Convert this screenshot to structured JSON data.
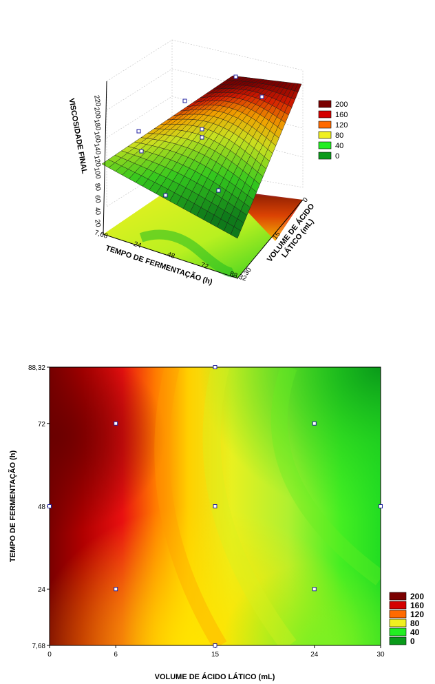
{
  "chart_data": [
    {
      "type": "surface3d",
      "title": "",
      "xlabel": "TEMPO DE FERMENTAÇÃO (h)",
      "ylabel": "VOLUME DE ÁCIDO LÁTICO (mL)",
      "zlabel": "VISCOSIDADE FINAL",
      "x_ticks": [
        "7,68",
        "24",
        "48",
        "72",
        "88,32"
      ],
      "y_ticks": [
        "0",
        "15",
        "30"
      ],
      "z_ticks": [
        "20",
        "40",
        "60",
        "80",
        "100",
        "120",
        "140",
        "160",
        "180",
        "200",
        "220"
      ],
      "legend": [
        "200",
        "160",
        "120",
        "80",
        "40",
        "0"
      ],
      "legend_colors": [
        "#7a0000",
        "#d40000",
        "#ff6a00",
        "#f0f020",
        "#22ee22",
        "#0a9a1a"
      ],
      "grid": true
    },
    {
      "type": "contour",
      "title": "",
      "xlabel": "VOLUME DE ÁCIDO LÁTICO (mL)",
      "ylabel": "TEMPO DE FERMENTAÇÃO (h)",
      "x_ticks": [
        "0",
        "6",
        "15",
        "24",
        "30"
      ],
      "y_ticks": [
        "7,68",
        "24",
        "48",
        "72",
        "88,32"
      ],
      "xlim": [
        0,
        30
      ],
      "ylim": [
        7.68,
        88.32
      ],
      "design_points": [
        {
          "x": 6,
          "y": 24
        },
        {
          "x": 6,
          "y": 72
        },
        {
          "x": 24,
          "y": 24
        },
        {
          "x": 24,
          "y": 72
        },
        {
          "x": 0,
          "y": 48
        },
        {
          "x": 30,
          "y": 48
        },
        {
          "x": 15,
          "y": 7.68
        },
        {
          "x": 15,
          "y": 88.32
        },
        {
          "x": 15,
          "y": 48
        }
      ],
      "legend": [
        "200",
        "160",
        "120",
        "80",
        "40",
        "0"
      ],
      "legend_colors": [
        "#7a0000",
        "#d40000",
        "#ff6a00",
        "#f0f020",
        "#22ee22",
        "#0a9a1a"
      ]
    }
  ]
}
